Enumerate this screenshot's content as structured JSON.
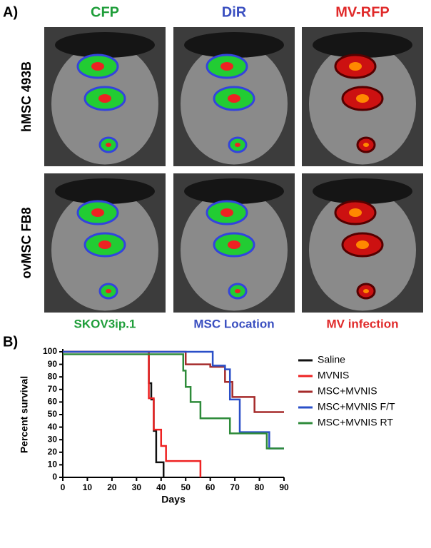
{
  "panel_a": {
    "label": "A)",
    "columns": [
      {
        "title": "CFP",
        "caption": "SKOV3ip.1",
        "color": "#1f9e3a"
      },
      {
        "title": "DiR",
        "caption": "MSC Location",
        "color": "#3a4fc0"
      },
      {
        "title": "MV-RFP",
        "caption": "MV infection",
        "color": "#e02a2a"
      }
    ],
    "rows": [
      "hMSC 493B",
      "ovMSC FB8"
    ]
  },
  "chart_data": {
    "type": "line",
    "step": true,
    "panel_label": "B)",
    "xlabel": "Days",
    "ylabel": "Percent survival",
    "xlim": [
      0,
      90
    ],
    "xticks": [
      0,
      10,
      20,
      30,
      40,
      50,
      60,
      70,
      80,
      90
    ],
    "ylim": [
      0,
      100
    ],
    "yticks": [
      0,
      10,
      20,
      30,
      40,
      50,
      60,
      70,
      80,
      90,
      100
    ],
    "series": [
      {
        "name": "Saline",
        "color": "#111111",
        "x": [
          0,
          35,
          36,
          37,
          38,
          41
        ],
        "values": [
          100,
          75,
          62,
          37,
          12,
          0
        ]
      },
      {
        "name": "MVNIS",
        "color": "#ee2222",
        "x": [
          0,
          35,
          37,
          40,
          42,
          56
        ],
        "values": [
          100,
          63,
          38,
          25,
          13,
          0
        ]
      },
      {
        "name": "MSC+MVNIS",
        "color": "#a52a2a",
        "x": [
          0,
          50,
          60,
          66,
          69,
          78,
          90
        ],
        "values": [
          100,
          90,
          88,
          76,
          64,
          52,
          52
        ]
      },
      {
        "name": "MSC+MVNIS F/T",
        "color": "#2a4fc8",
        "x": [
          0,
          61,
          66,
          68,
          72,
          84,
          90
        ],
        "values": [
          100,
          89,
          86,
          62,
          36,
          23,
          23
        ]
      },
      {
        "name": "MSC+MVNIS RT",
        "color": "#2e8b3a",
        "x": [
          0,
          49,
          50,
          52,
          56,
          68,
          83,
          90
        ],
        "values": [
          98,
          85,
          72,
          60,
          47,
          35,
          23,
          23
        ]
      }
    ]
  }
}
